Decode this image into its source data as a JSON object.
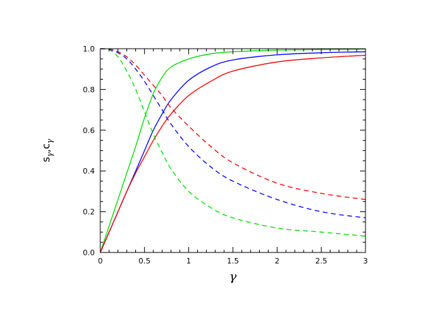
{
  "chart_data": {
    "type": "line",
    "xlabel": "γ",
    "ylabel_parts": [
      "s",
      "γ",
      ",c",
      "γ"
    ],
    "xlim": [
      0,
      3
    ],
    "ylim": [
      0,
      1
    ],
    "x_ticks": [
      0,
      0.5,
      1,
      1.5,
      2,
      2.5,
      3
    ],
    "x_tick_labels": [
      "0",
      "0.5",
      "1",
      "1.5",
      "2",
      "2.5",
      "3"
    ],
    "y_ticks": [
      0,
      0.2,
      0.4,
      0.6,
      0.8,
      1.0
    ],
    "y_tick_labels": [
      "0.0",
      "0.2",
      "0.4",
      "0.6",
      "0.8",
      "1.0"
    ],
    "grid": false,
    "series": [
      {
        "color": "#00dd00",
        "style": "solid",
        "x": [
          0,
          0.1,
          0.2,
          0.3,
          0.4,
          0.5,
          0.6,
          0.7,
          0.8,
          1.0,
          1.25,
          1.5,
          2.0,
          2.5,
          3.0
        ],
        "y": [
          0,
          0.13,
          0.26,
          0.39,
          0.52,
          0.66,
          0.78,
          0.86,
          0.91,
          0.95,
          0.975,
          0.985,
          0.993,
          0.996,
          0.998
        ]
      },
      {
        "color": "#0000ff",
        "style": "solid",
        "x": [
          0,
          0.1,
          0.2,
          0.3,
          0.4,
          0.5,
          0.6,
          0.7,
          0.8,
          1.0,
          1.25,
          1.5,
          2.0,
          2.5,
          3.0
        ],
        "y": [
          0,
          0.1,
          0.2,
          0.3,
          0.4,
          0.5,
          0.6,
          0.68,
          0.75,
          0.845,
          0.91,
          0.945,
          0.97,
          0.98,
          0.985
        ]
      },
      {
        "color": "#ee0000",
        "style": "solid",
        "x": [
          0,
          0.1,
          0.2,
          0.3,
          0.4,
          0.5,
          0.6,
          0.7,
          0.8,
          1.0,
          1.25,
          1.5,
          2.0,
          2.5,
          3.0
        ],
        "y": [
          0,
          0.1,
          0.2,
          0.3,
          0.39,
          0.47,
          0.55,
          0.62,
          0.68,
          0.77,
          0.84,
          0.89,
          0.935,
          0.955,
          0.968
        ]
      },
      {
        "color": "#00dd00",
        "style": "dashed",
        "x": [
          0,
          0.1,
          0.2,
          0.3,
          0.4,
          0.5,
          0.6,
          0.7,
          0.8,
          1.0,
          1.25,
          1.5,
          2.0,
          2.5,
          3.0
        ],
        "y": [
          1.0,
          0.995,
          0.96,
          0.89,
          0.8,
          0.69,
          0.58,
          0.49,
          0.41,
          0.3,
          0.22,
          0.17,
          0.12,
          0.1,
          0.08
        ]
      },
      {
        "color": "#0000ff",
        "style": "dashed",
        "x": [
          0,
          0.1,
          0.2,
          0.3,
          0.4,
          0.5,
          0.6,
          0.7,
          0.8,
          1.0,
          1.25,
          1.5,
          2.0,
          2.5,
          3.0
        ],
        "y": [
          1.0,
          0.997,
          0.98,
          0.95,
          0.9,
          0.84,
          0.77,
          0.7,
          0.63,
          0.52,
          0.42,
          0.35,
          0.26,
          0.2,
          0.17
        ]
      },
      {
        "color": "#ee0000",
        "style": "dashed",
        "x": [
          0,
          0.1,
          0.2,
          0.3,
          0.4,
          0.5,
          0.6,
          0.7,
          0.8,
          1.0,
          1.25,
          1.5,
          2.0,
          2.5,
          3.0
        ],
        "y": [
          1.0,
          0.998,
          0.985,
          0.96,
          0.92,
          0.87,
          0.82,
          0.77,
          0.71,
          0.62,
          0.52,
          0.44,
          0.34,
          0.29,
          0.26
        ]
      }
    ]
  }
}
